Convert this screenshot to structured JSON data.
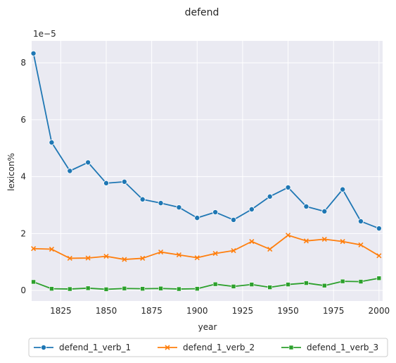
{
  "chart_data": {
    "type": "line",
    "title": "defend",
    "xlabel": "year",
    "ylabel": "lexicon%",
    "y_offset_text": "1e−5",
    "x": [
      1810,
      1820,
      1830,
      1840,
      1850,
      1860,
      1870,
      1880,
      1890,
      1900,
      1910,
      1920,
      1930,
      1940,
      1950,
      1960,
      1970,
      1980,
      1990,
      2000
    ],
    "xlim": [
      1809,
      2002
    ],
    "ylim": [
      -0.37,
      8.77
    ],
    "x_ticks": [
      1825,
      1850,
      1875,
      1900,
      1925,
      1950,
      1975,
      2000
    ],
    "y_ticks": [
      0,
      2,
      4,
      6,
      8
    ],
    "x_tick_labels": [
      "1825",
      "1850",
      "1875",
      "1900",
      "1925",
      "1950",
      "1975",
      "2000"
    ],
    "y_tick_labels": [
      "0",
      "2",
      "4",
      "6",
      "8"
    ],
    "grid": true,
    "background": "#eaeaf2",
    "legend_position": "bottom-center",
    "series": [
      {
        "name": "defend_1_verb_1",
        "color": "#1f77b4",
        "marker": "circle",
        "values": [
          8.33,
          5.2,
          4.2,
          4.5,
          3.77,
          3.82,
          3.2,
          3.07,
          2.92,
          2.55,
          2.75,
          2.48,
          2.85,
          3.3,
          3.62,
          2.95,
          2.78,
          3.55,
          2.43,
          2.18
        ]
      },
      {
        "name": "defend_1_verb_2",
        "color": "#ff7f0e",
        "marker": "x",
        "values": [
          1.47,
          1.45,
          1.13,
          1.14,
          1.2,
          1.09,
          1.13,
          1.35,
          1.25,
          1.15,
          1.3,
          1.4,
          1.72,
          1.45,
          1.94,
          1.74,
          1.8,
          1.72,
          1.6,
          1.22
        ]
      },
      {
        "name": "defend_1_verb_3",
        "color": "#2ca02c",
        "marker": "square",
        "values": [
          0.3,
          0.06,
          0.05,
          0.08,
          0.04,
          0.07,
          0.06,
          0.07,
          0.05,
          0.06,
          0.22,
          0.14,
          0.21,
          0.11,
          0.21,
          0.26,
          0.17,
          0.32,
          0.31,
          0.43
        ]
      }
    ]
  }
}
